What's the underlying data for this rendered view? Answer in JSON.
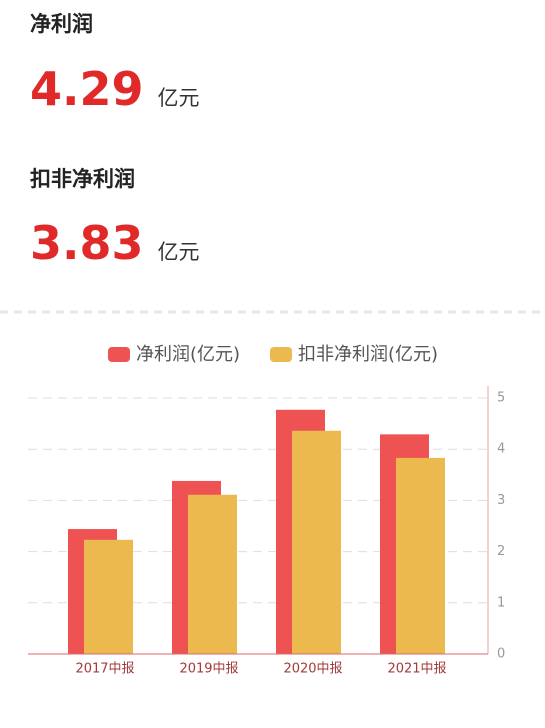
{
  "metrics": [
    {
      "label": "净利润",
      "value": "4.29",
      "unit": "亿元"
    },
    {
      "label": "扣非净利润",
      "value": "3.83",
      "unit": "亿元"
    }
  ],
  "chart_data": {
    "type": "bar",
    "categories": [
      "2017中报",
      "2019中报",
      "2020中报",
      "2021中报"
    ],
    "series": [
      {
        "name": "净利润(亿元)",
        "color": "#ee5253",
        "values": [
          2.44,
          3.38,
          4.77,
          4.29
        ]
      },
      {
        "name": "扣非净利润(亿元)",
        "color": "#ecb94f",
        "values": [
          2.23,
          3.11,
          4.36,
          3.83
        ]
      }
    ],
    "ylim": [
      0,
      5
    ],
    "yticks": [
      0,
      1,
      2,
      3,
      4,
      5
    ],
    "grid": true
  }
}
